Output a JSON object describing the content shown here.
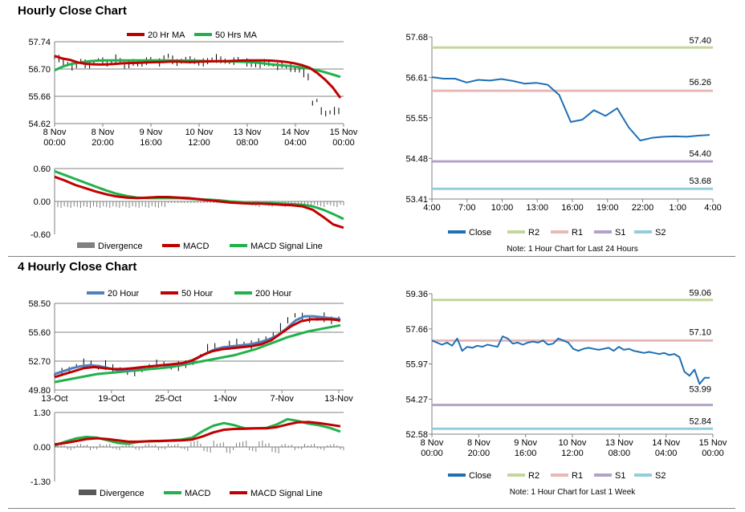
{
  "titles": {
    "hourly": "Hourly Close Chart",
    "four_hourly": "4 Hourly Close Chart"
  },
  "colors": {
    "ma20": "#c00000",
    "ma50": "#22b14c",
    "close": "#1f6fb5",
    "r2": "#c3d69b",
    "r1": "#e6b9b8",
    "s1": "#b3a2c7",
    "s2": "#93cddd",
    "divergence": "#808080",
    "ma20_4h": "#4f81bd",
    "ma200_4h": "#22b14c"
  },
  "chart_data": [
    {
      "id": "hourly_price",
      "type": "line",
      "legend": [
        "20 Hr MA",
        "50 Hrs MA"
      ],
      "x_ticks": [
        "8 Nov\n00:00",
        "8 Nov\n20:00",
        "9 Nov\n16:00",
        "10 Nov\n12:00",
        "13 Nov\n08:00",
        "14 Nov\n04:00",
        "15 Nov\n00:00"
      ],
      "y_ticks": [
        "57.74",
        "56.70",
        "55.66",
        "54.62"
      ],
      "ylim": [
        54.62,
        57.74
      ],
      "price": [
        57.15,
        57.1,
        56.95,
        56.9,
        56.8,
        56.85,
        57.0,
        56.9,
        56.85,
        56.95,
        57.05,
        57.0,
        56.9,
        56.95,
        57.1,
        57.0,
        56.8,
        56.9,
        56.95,
        56.9,
        56.85,
        57.0,
        57.05,
        57.0,
        56.95,
        57.1,
        57.2,
        57.05,
        56.95,
        57.0,
        57.1,
        57.05,
        57.0,
        56.9,
        56.95,
        57.0,
        57.05,
        57.1,
        57.05,
        57.0,
        56.95,
        57.0,
        57.05,
        57.0,
        56.95,
        56.9,
        56.85,
        56.9,
        56.95,
        56.9,
        56.85,
        56.8,
        56.85,
        56.8,
        56.75,
        56.7,
        56.65,
        56.55,
        56.4,
        55.4,
        55.5,
        55.1,
        55.0,
        55.05,
        55.1,
        55.1
      ],
      "ma20": [
        57.2,
        57.1,
        57.05,
        56.95,
        56.9,
        56.88,
        56.87,
        56.88,
        56.9,
        56.92,
        56.93,
        56.94,
        56.95,
        56.96,
        56.97,
        56.98,
        56.98,
        56.97,
        56.97,
        56.98,
        56.99,
        57.0,
        57.0,
        57.01,
        57.02,
        57.03,
        57.03,
        57.03,
        57.02,
        57.0,
        56.97,
        56.92,
        56.85,
        56.75,
        56.55,
        56.3,
        56.0,
        55.6
      ],
      "ma50": [
        56.65,
        56.8,
        56.9,
        56.95,
        57.0,
        57.02,
        57.03,
        57.03,
        57.03,
        57.03,
        57.03,
        57.03,
        57.03,
        57.03,
        57.02,
        57.02,
        57.02,
        57.01,
        57.0,
        57.0,
        56.99,
        56.98,
        56.97,
        56.95,
        56.92,
        56.88,
        56.85,
        56.82,
        56.78,
        56.74,
        56.68,
        56.6,
        56.5,
        56.4
      ]
    },
    {
      "id": "hourly_macd",
      "type": "line",
      "legend": [
        "Divergence",
        "MACD",
        "MACD Signal Line"
      ],
      "y_ticks": [
        "0.60",
        "0.00",
        "-0.60"
      ],
      "ylim": [
        -0.6,
        0.6
      ],
      "macd": [
        0.45,
        0.38,
        0.3,
        0.24,
        0.18,
        0.13,
        0.09,
        0.07,
        0.06,
        0.07,
        0.08,
        0.08,
        0.07,
        0.06,
        0.04,
        0.02,
        0.0,
        -0.02,
        -0.03,
        -0.04,
        -0.04,
        -0.05,
        -0.06,
        -0.07,
        -0.09,
        -0.15,
        -0.28,
        -0.42,
        -0.48
      ],
      "signal": [
        0.55,
        0.48,
        0.41,
        0.34,
        0.27,
        0.2,
        0.14,
        0.1,
        0.07,
        0.06,
        0.06,
        0.06,
        0.06,
        0.05,
        0.04,
        0.03,
        0.02,
        0.0,
        -0.01,
        -0.02,
        -0.03,
        -0.03,
        -0.04,
        -0.05,
        -0.06,
        -0.09,
        -0.15,
        -0.23,
        -0.32
      ]
    },
    {
      "id": "hourly_24h",
      "type": "line",
      "x_ticks": [
        "4:00",
        "7:00",
        "10:00",
        "13:00",
        "16:00",
        "19:00",
        "22:00",
        "1:00",
        "4:00"
      ],
      "y_ticks": [
        "57.68",
        "56.61",
        "55.55",
        "54.48",
        "53.41"
      ],
      "ylim": [
        53.41,
        57.68
      ],
      "legend": [
        "Close",
        "R2",
        "R1",
        "S1",
        "S2"
      ],
      "note": "Note: 1 Hour Chart for Last 24 Hours",
      "levels": {
        "R2": 57.4,
        "R1": 56.26,
        "S1": 54.4,
        "S2": 53.68
      },
      "level_labels": {
        "R2": "57.40",
        "R1": "56.26",
        "S1": "54.40",
        "S2": "53.68"
      },
      "close": [
        56.62,
        56.58,
        56.58,
        56.48,
        56.55,
        56.53,
        56.57,
        56.52,
        56.45,
        56.47,
        56.42,
        56.15,
        55.44,
        55.5,
        55.75,
        55.6,
        55.8,
        55.3,
        54.95,
        55.02,
        55.05,
        55.06,
        55.05,
        55.08,
        55.1
      ]
    },
    {
      "id": "four_hourly_price",
      "type": "line",
      "legend": [
        "20 Hour",
        "50 Hour",
        "200 Hour"
      ],
      "x_ticks": [
        "13-Oct",
        "19-Oct",
        "25-Oct",
        "1-Nov",
        "7-Nov",
        "13-Nov"
      ],
      "y_ticks": [
        "58.50",
        "55.60",
        "52.70",
        "49.80"
      ],
      "ylim": [
        49.8,
        58.5
      ],
      "price": [
        51.3,
        51.6,
        51.8,
        52.2,
        52.5,
        52.4,
        52.1,
        52.3,
        52.0,
        51.8,
        51.5,
        51.6,
        51.9,
        52.2,
        52.4,
        52.3,
        52.1,
        52.2,
        52.4,
        52.6,
        53.2,
        54.0,
        54.2,
        54.0,
        54.3,
        54.6,
        54.4,
        54.3,
        54.6,
        54.9,
        55.4,
        56.1,
        56.8,
        57.3,
        57.1,
        56.9,
        57.0,
        57.1,
        56.8,
        56.9
      ],
      "ma20": [
        51.4,
        51.7,
        52.0,
        52.2,
        52.3,
        52.2,
        52.0,
        51.8,
        51.8,
        51.9,
        52.1,
        52.2,
        52.3,
        52.3,
        52.4,
        52.6,
        53.0,
        53.5,
        53.9,
        54.1,
        54.2,
        54.3,
        54.4,
        54.6,
        54.9,
        55.3,
        56.0,
        56.8,
        57.2,
        57.2,
        57.1,
        57.0,
        56.9
      ],
      "ma50": [
        51.1,
        51.4,
        51.7,
        52.0,
        52.1,
        52.0,
        51.9,
        51.9,
        52.0,
        52.1,
        52.2,
        52.3,
        52.4,
        52.5,
        52.8,
        53.3,
        53.7,
        53.9,
        54.0,
        54.1,
        54.2,
        54.4,
        54.8,
        55.5,
        56.2,
        56.7,
        56.9,
        56.9,
        56.9,
        56.8
      ],
      "ma200": [
        50.6,
        50.8,
        51.0,
        51.2,
        51.4,
        51.5,
        51.6,
        51.7,
        51.8,
        51.9,
        52.0,
        52.1,
        52.3,
        52.5,
        52.7,
        52.9,
        53.1,
        53.3,
        53.6,
        53.9,
        54.3,
        54.7,
        55.1,
        55.4,
        55.7,
        55.9,
        56.1,
        56.3
      ]
    },
    {
      "id": "four_hourly_macd",
      "type": "line",
      "legend": [
        "Divergence",
        "MACD",
        "MACD Signal Line"
      ],
      "y_ticks": [
        "1.30",
        "0.00",
        "-1.30"
      ],
      "ylim": [
        -1.3,
        1.3
      ],
      "macd": [
        0.05,
        0.2,
        0.32,
        0.38,
        0.35,
        0.25,
        0.15,
        0.12,
        0.2,
        0.22,
        0.22,
        0.25,
        0.28,
        0.35,
        0.6,
        0.8,
        0.9,
        0.82,
        0.7,
        0.7,
        0.72,
        0.85,
        1.05,
        0.98,
        0.88,
        0.82,
        0.72,
        0.58
      ],
      "signal": [
        0.1,
        0.15,
        0.22,
        0.3,
        0.33,
        0.3,
        0.25,
        0.2,
        0.2,
        0.22,
        0.23,
        0.24,
        0.25,
        0.28,
        0.4,
        0.55,
        0.65,
        0.68,
        0.69,
        0.7,
        0.7,
        0.75,
        0.85,
        0.93,
        0.94,
        0.9,
        0.84,
        0.78
      ]
    },
    {
      "id": "weekly_1h",
      "type": "line",
      "x_ticks": [
        "8 Nov\n00:00",
        "8 Nov\n20:00",
        "9 Nov\n16:00",
        "10 Nov\n12:00",
        "13 Nov\n08:00",
        "14 Nov\n04:00",
        "15 Nov\n00:00"
      ],
      "y_ticks": [
        "59.36",
        "57.66",
        "55.97",
        "54.27",
        "52.58"
      ],
      "ylim": [
        52.58,
        59.36
      ],
      "legend": [
        "Close",
        "R2",
        "R1",
        "S1",
        "S2"
      ],
      "note": "Note: 1 Hour Chart for Last 1 Week",
      "levels": {
        "R2": 59.06,
        "R1": 57.1,
        "S1": 53.99,
        "S2": 52.84
      },
      "level_labels": {
        "R2": "59.06",
        "R1": "57.10",
        "S1": "53.99",
        "S2": "52.84"
      },
      "close": [
        57.1,
        57.0,
        56.9,
        57.0,
        56.85,
        57.2,
        56.6,
        56.8,
        56.75,
        56.85,
        56.8,
        56.9,
        56.85,
        56.8,
        57.3,
        57.2,
        56.95,
        57.0,
        56.9,
        57.0,
        57.05,
        57.0,
        57.1,
        56.9,
        56.95,
        57.2,
        57.1,
        57.0,
        56.7,
        56.6,
        56.7,
        56.75,
        56.7,
        56.65,
        56.7,
        56.75,
        56.6,
        56.8,
        56.65,
        56.7,
        56.6,
        56.55,
        56.5,
        56.55,
        56.5,
        56.45,
        56.5,
        56.4,
        56.45,
        56.3,
        55.6,
        55.4,
        55.7,
        55.0,
        55.3,
        55.3
      ]
    }
  ]
}
